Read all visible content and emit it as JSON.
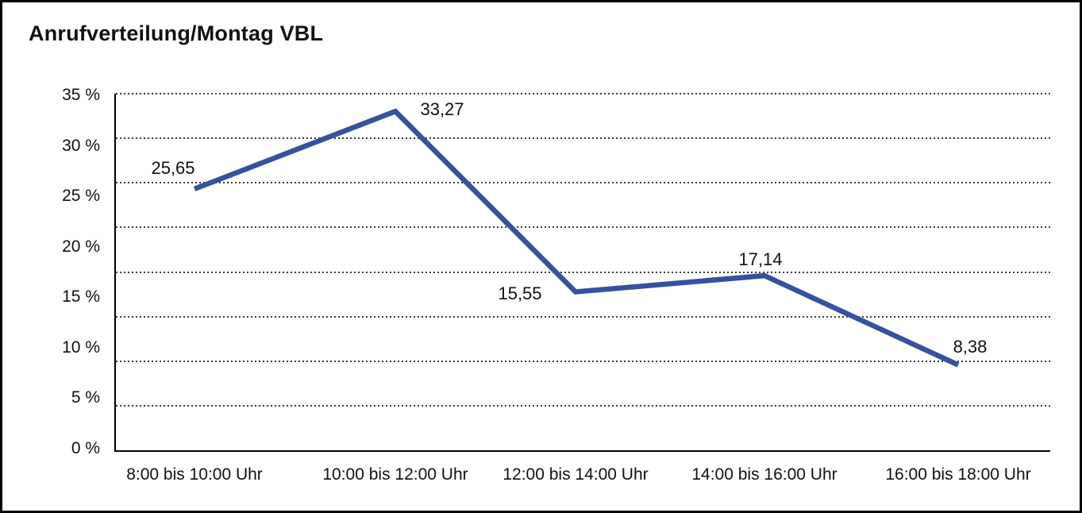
{
  "title": "Anrufverteilung/Montag VBL",
  "colors": {
    "line": "#36519e",
    "grid_dots": "#3c3c3c",
    "axis": "#000000",
    "text": "#111111",
    "background": "#ffffff",
    "frame_border": "#000000"
  },
  "chart_data": {
    "type": "line",
    "title": "Anrufverteilung/Montag VBL",
    "categories": [
      "8:00 bis 10:00 Uhr",
      "10:00 bis 12:00 Uhr",
      "12:00 bis 14:00 Uhr",
      "14:00 bis 16:00 Uhr",
      "16:00 bis 18:00 Uhr"
    ],
    "values": [
      25.65,
      33.27,
      15.55,
      17.14,
      8.38
    ],
    "value_labels": [
      "25,65",
      "33,27",
      "15,55",
      "17,14",
      "8,38"
    ],
    "xlabel": "",
    "ylabel": "",
    "ylim": [
      0,
      35
    ],
    "y_tick_labels": [
      "0 %",
      "5 %",
      "10 %",
      "15 %",
      "20 %",
      "25 %",
      "30 %",
      "35 %"
    ],
    "y_tick_unit": "%",
    "grid": "horizontal dotted lines, 8 equal intervals, top line dotted, bottom axis solid",
    "legend_position": "none",
    "decimal_separator": ","
  }
}
